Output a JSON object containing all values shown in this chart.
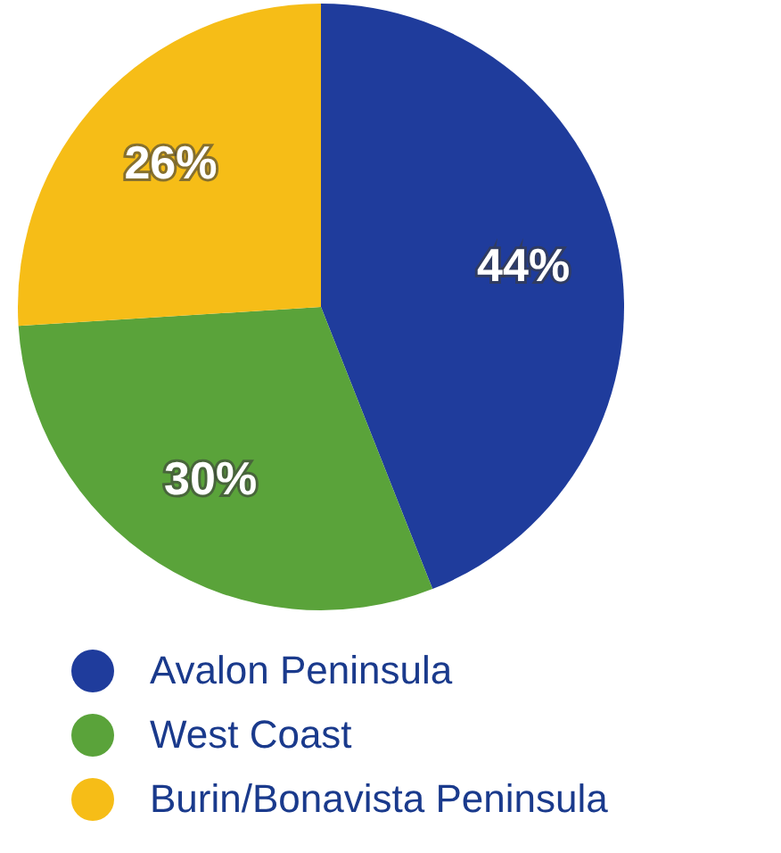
{
  "chart_data": {
    "type": "pie",
    "categories": [
      "Avalon Peninsula",
      "West Coast",
      "Burin/Bonavista Peninsula"
    ],
    "values": [
      44,
      30,
      26
    ],
    "colors": [
      "#1f3c9c",
      "#5aa33a",
      "#f6bd17"
    ],
    "value_labels": [
      "44%",
      "30%",
      "26%"
    ],
    "legend": "bottom"
  }
}
